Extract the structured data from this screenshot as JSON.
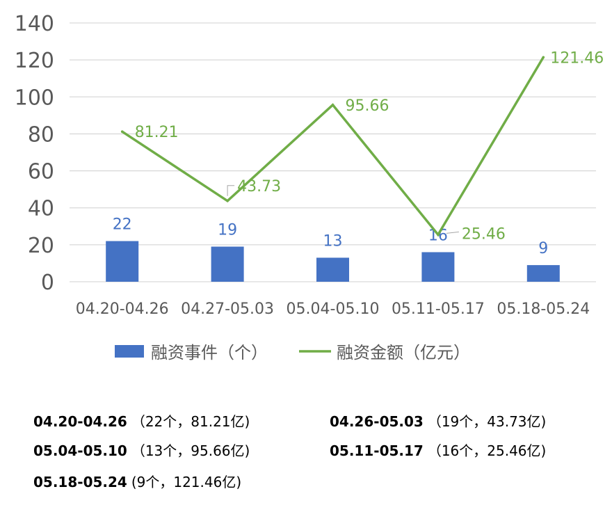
{
  "chart_data": {
    "type": "bar+line",
    "categories": [
      "04.20-04.26",
      "04.27-05.03",
      "05.04-05.10",
      "05.11-05.17",
      "05.18-05.24"
    ],
    "series": [
      {
        "name": "融资事件（个）",
        "type": "bar",
        "color": "#4472C4",
        "values": [
          22,
          19,
          13,
          16,
          9
        ],
        "data_labels": [
          "22",
          "19",
          "13",
          "16",
          "9"
        ]
      },
      {
        "name": "融资金额（亿元）",
        "type": "line",
        "color": "#70AD47",
        "values": [
          81.21,
          43.73,
          95.66,
          25.46,
          121.46
        ],
        "data_labels": [
          "81.21",
          "43.73",
          "95.66",
          "25.46",
          "121.46"
        ]
      }
    ],
    "yticks": [
      "0",
      "20",
      "40",
      "60",
      "80",
      "100",
      "120",
      "140"
    ],
    "ylim": [
      0,
      140
    ],
    "grid": true,
    "legend_position": "bottom"
  },
  "summary": [
    {
      "period": "04.20-04.26",
      "detail": "（22个，81.21亿)"
    },
    {
      "period": "04.26-05.03",
      "detail": "（19个，43.73亿)"
    },
    {
      "period": "05.04-05.10",
      "detail": "（13个，95.66亿)"
    },
    {
      "period": "05.11-05.17",
      "detail": "（16个，25.46亿)"
    },
    {
      "period": "05.18-05.24",
      "detail": "(9个，121.46亿)"
    }
  ]
}
